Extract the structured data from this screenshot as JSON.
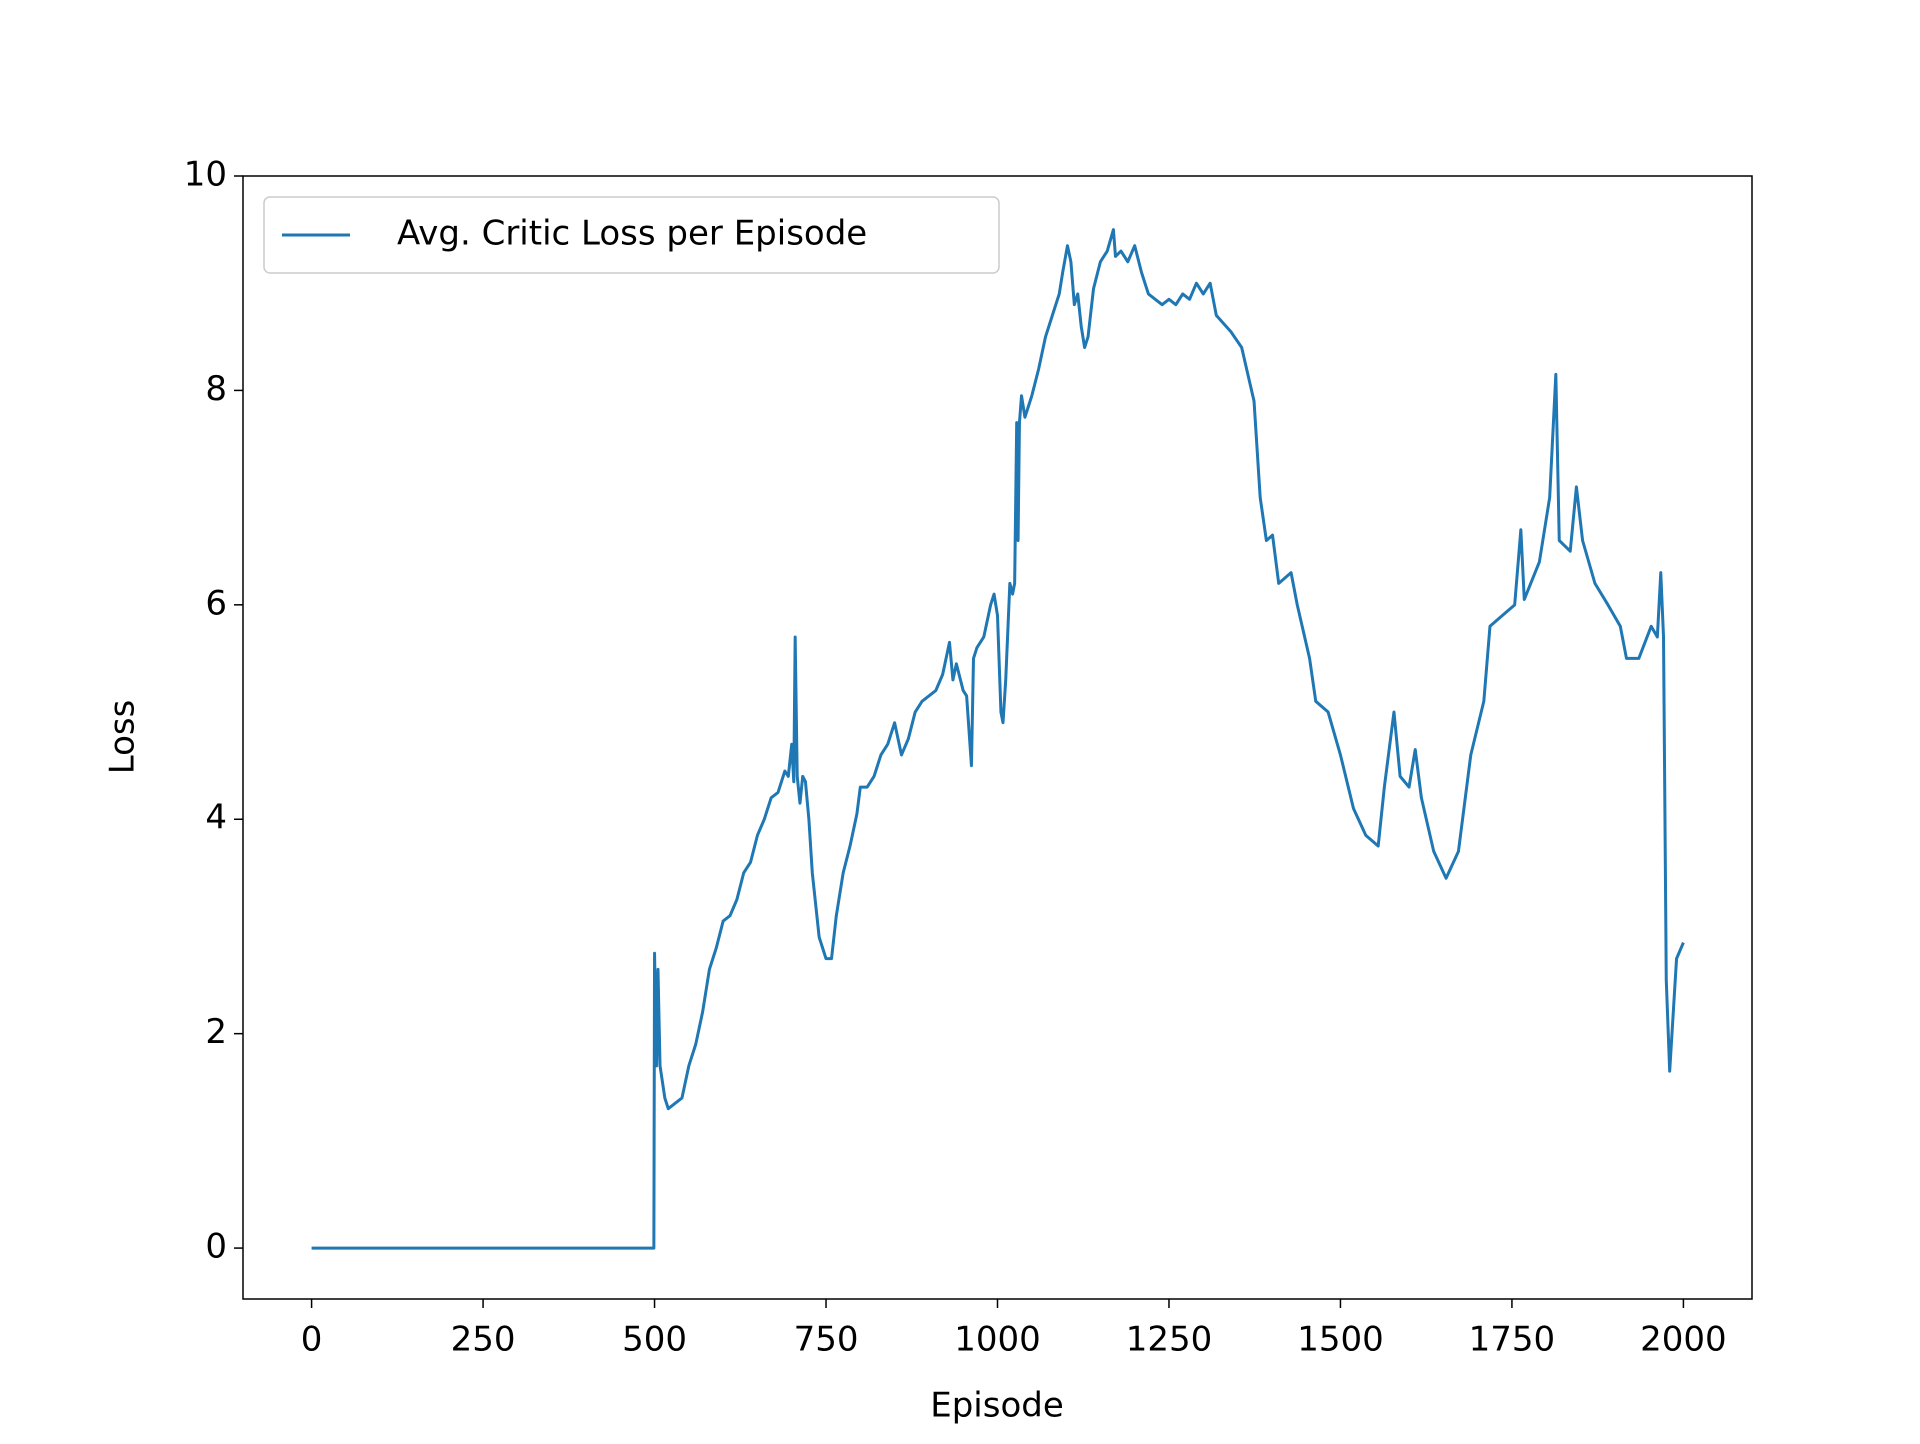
{
  "chart_data": {
    "type": "line",
    "x_label": "Episode",
    "y_label": "Loss",
    "xlim": [
      -100,
      2100
    ],
    "ylim": [
      -0.475,
      10
    ],
    "xticks": [
      0,
      250,
      500,
      750,
      1000,
      1250,
      1500,
      1750,
      2000
    ],
    "yticks": [
      0,
      2,
      4,
      6,
      8,
      10
    ],
    "legend": "upper left",
    "grid": false,
    "x": [
      0,
      499,
      500,
      503,
      505,
      508,
      515,
      520,
      530,
      540,
      550,
      560,
      570,
      580,
      590,
      600,
      610,
      620,
      630,
      640,
      650,
      660,
      670,
      680,
      690,
      695,
      700,
      703,
      705,
      708,
      712,
      716,
      720,
      725,
      730,
      740,
      750,
      758,
      765,
      775,
      785,
      795,
      800,
      810,
      820,
      830,
      840,
      850,
      860,
      870,
      880,
      890,
      900,
      910,
      920,
      930,
      935,
      940,
      950,
      955,
      962,
      965,
      970,
      980,
      990,
      995,
      1000,
      1005,
      1008,
      1012,
      1018,
      1022,
      1025,
      1028,
      1030,
      1032,
      1035,
      1040,
      1045,
      1050,
      1060,
      1070,
      1080,
      1090,
      1095,
      1102,
      1107,
      1112,
      1117,
      1122,
      1127,
      1132,
      1140,
      1150,
      1160,
      1169,
      1172,
      1180,
      1190,
      1200,
      1210,
      1220,
      1230,
      1240,
      1250,
      1260,
      1270,
      1280,
      1290,
      1300,
      1310,
      1319,
      1340,
      1356,
      1374,
      1383,
      1392,
      1401,
      1410,
      1428,
      1437,
      1455,
      1464,
      1482,
      1500,
      1519,
      1537,
      1555,
      1564,
      1578,
      1587,
      1600,
      1609,
      1618,
      1636,
      1654,
      1672,
      1690,
      1709,
      1718,
      1736,
      1754,
      1763,
      1768,
      1790,
      1805,
      1814,
      1819,
      1835,
      1844,
      1853,
      1871,
      1890,
      1908,
      1917,
      1935,
      1953,
      1962,
      1967,
      1971,
      1975,
      1980,
      1990,
      2000
    ],
    "series": [
      {
        "name": "Avg. Critic Loss per Episode",
        "color": "#1f77b4",
        "values": [
          0,
          0,
          2.75,
          1.7,
          2.6,
          1.7,
          1.4,
          1.3,
          1.35,
          1.4,
          1.7,
          1.9,
          2.2,
          2.6,
          2.8,
          3.05,
          3.1,
          3.25,
          3.5,
          3.6,
          3.85,
          4.0,
          4.2,
          4.25,
          4.45,
          4.4,
          4.7,
          4.35,
          5.7,
          4.4,
          4.15,
          4.4,
          4.35,
          4.0,
          3.5,
          2.9,
          2.7,
          2.7,
          3.1,
          3.5,
          3.75,
          4.05,
          4.3,
          4.3,
          4.4,
          4.6,
          4.7,
          4.9,
          4.6,
          4.75,
          5.0,
          5.1,
          5.15,
          5.2,
          5.35,
          5.65,
          5.3,
          5.45,
          5.2,
          5.15,
          4.5,
          5.5,
          5.6,
          5.7,
          6.0,
          6.1,
          5.9,
          5.0,
          4.9,
          5.3,
          6.2,
          6.1,
          6.2,
          7.7,
          6.6,
          7.7,
          7.95,
          7.75,
          7.85,
          7.95,
          8.2,
          8.5,
          8.7,
          8.9,
          9.1,
          9.35,
          9.2,
          8.8,
          8.9,
          8.6,
          8.4,
          8.5,
          8.95,
          9.2,
          9.3,
          9.5,
          9.25,
          9.3,
          9.2,
          9.35,
          9.1,
          8.9,
          8.85,
          8.8,
          8.85,
          8.8,
          8.9,
          8.85,
          9.0,
          8.9,
          9.0,
          8.7,
          8.55,
          8.4,
          7.9,
          7.0,
          6.6,
          6.65,
          6.2,
          6.3,
          6.0,
          5.5,
          5.1,
          5.0,
          4.6,
          4.1,
          3.85,
          3.75,
          4.3,
          5.0,
          4.4,
          4.3,
          4.65,
          4.2,
          3.7,
          3.45,
          3.7,
          4.6,
          5.1,
          5.8,
          5.9,
          6.0,
          6.7,
          6.05,
          6.4,
          7.0,
          8.15,
          6.6,
          6.5,
          7.1,
          6.6,
          6.2,
          6.0,
          5.8,
          5.5,
          5.5,
          5.8,
          5.7,
          6.3,
          5.7,
          2.5,
          1.65,
          2.7,
          2.85
        ]
      }
    ]
  }
}
